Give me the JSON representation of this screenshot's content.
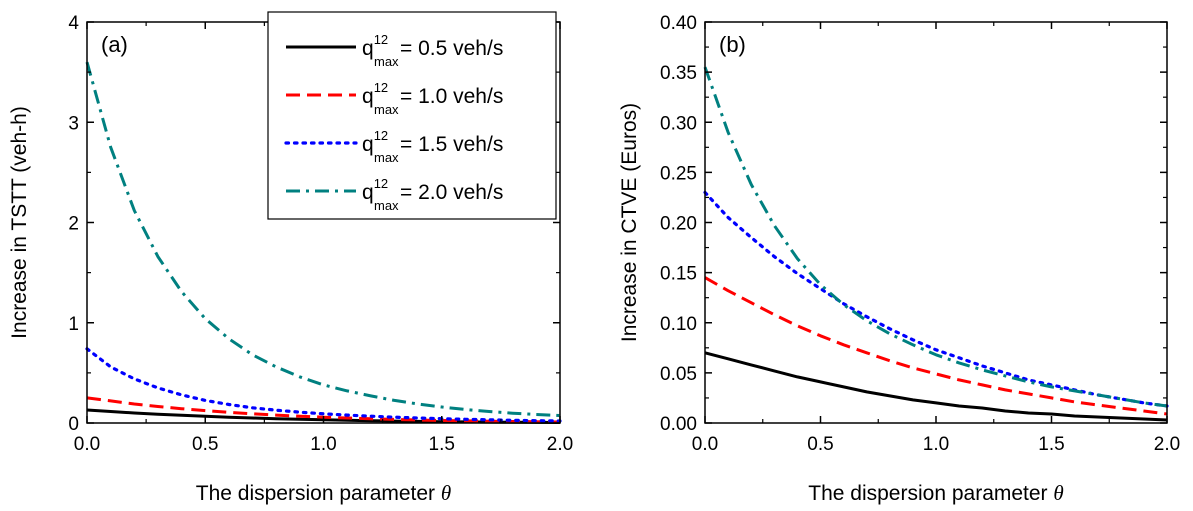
{
  "chart_data": [
    {
      "type": "line",
      "panel_label": "(a)",
      "xlabel": "The dispersion parameter",
      "xlabel_symbol": "θ",
      "ylabel": "Increase in TSTT (veh-h)",
      "xlim": [
        0.0,
        2.0
      ],
      "ylim": [
        0,
        4
      ],
      "xticks": [
        "0.0",
        "0.5",
        "1.0",
        "1.5",
        "2.0"
      ],
      "yticks": [
        "0",
        "1",
        "2",
        "3",
        "4"
      ],
      "x": [
        0.0,
        0.1,
        0.2,
        0.3,
        0.4,
        0.5,
        0.6,
        0.7,
        0.8,
        0.9,
        1.0,
        1.1,
        1.2,
        1.3,
        1.4,
        1.5,
        1.6,
        1.7,
        1.8,
        1.9,
        2.0
      ],
      "series": [
        {
          "name": "q_max^12 = 0.5 veh/s",
          "values": [
            0.13,
            0.115,
            0.1,
            0.088,
            0.077,
            0.067,
            0.058,
            0.05,
            0.043,
            0.037,
            0.032,
            0.027,
            0.023,
            0.019,
            0.016,
            0.013,
            0.011,
            0.009,
            0.007,
            0.006,
            0.005
          ]
        },
        {
          "name": "q_max^12 = 1.0 veh/s",
          "values": [
            0.25,
            0.22,
            0.19,
            0.165,
            0.143,
            0.124,
            0.107,
            0.092,
            0.079,
            0.068,
            0.058,
            0.05,
            0.042,
            0.036,
            0.03,
            0.025,
            0.021,
            0.018,
            0.015,
            0.012,
            0.01
          ]
        },
        {
          "name": "q_max^12 = 1.5 veh/s",
          "values": [
            0.74,
            0.56,
            0.44,
            0.35,
            0.28,
            0.225,
            0.185,
            0.152,
            0.128,
            0.108,
            0.092,
            0.079,
            0.068,
            0.058,
            0.05,
            0.043,
            0.037,
            0.032,
            0.027,
            0.023,
            0.02
          ]
        },
        {
          "name": "q_max^12 = 2.0 veh/s",
          "values": [
            3.6,
            2.75,
            2.12,
            1.66,
            1.31,
            1.04,
            0.84,
            0.68,
            0.56,
            0.46,
            0.38,
            0.32,
            0.27,
            0.225,
            0.19,
            0.16,
            0.135,
            0.115,
            0.098,
            0.085,
            0.075
          ]
        }
      ],
      "grid": false
    },
    {
      "type": "line",
      "panel_label": "(b)",
      "xlabel": "The dispersion parameter",
      "xlabel_symbol": "θ",
      "ylabel": "Increase in CTVE (Euros)",
      "xlim": [
        0.0,
        2.0
      ],
      "ylim": [
        0,
        0.4
      ],
      "xticks": [
        "0.0",
        "0.5",
        "1.0",
        "1.5",
        "2.0"
      ],
      "yticks": [
        "0.00",
        "0.05",
        "0.10",
        "0.15",
        "0.20",
        "0.25",
        "0.30",
        "0.35",
        "0.40"
      ],
      "x": [
        0.0,
        0.1,
        0.2,
        0.3,
        0.4,
        0.5,
        0.6,
        0.7,
        0.8,
        0.9,
        1.0,
        1.1,
        1.2,
        1.3,
        1.4,
        1.5,
        1.6,
        1.7,
        1.8,
        1.9,
        2.0
      ],
      "series": [
        {
          "name": "q_max^12 = 0.5 veh/s",
          "values": [
            0.07,
            0.064,
            0.058,
            0.052,
            0.046,
            0.041,
            0.036,
            0.031,
            0.027,
            0.023,
            0.02,
            0.017,
            0.015,
            0.012,
            0.01,
            0.009,
            0.007,
            0.006,
            0.005,
            0.004,
            0.003
          ]
        },
        {
          "name": "q_max^12 = 1.0 veh/s",
          "values": [
            0.145,
            0.132,
            0.12,
            0.108,
            0.097,
            0.087,
            0.078,
            0.07,
            0.062,
            0.055,
            0.049,
            0.043,
            0.038,
            0.033,
            0.029,
            0.025,
            0.021,
            0.018,
            0.015,
            0.012,
            0.009
          ]
        },
        {
          "name": "q_max^12 = 1.5 veh/s",
          "values": [
            0.23,
            0.205,
            0.185,
            0.166,
            0.149,
            0.134,
            0.119,
            0.106,
            0.094,
            0.083,
            0.073,
            0.065,
            0.057,
            0.05,
            0.043,
            0.038,
            0.033,
            0.028,
            0.024,
            0.02,
            0.017
          ]
        },
        {
          "name": "q_max^12 = 2.0 veh/s",
          "values": [
            0.355,
            0.29,
            0.238,
            0.197,
            0.164,
            0.138,
            0.118,
            0.102,
            0.089,
            0.078,
            0.068,
            0.06,
            0.053,
            0.047,
            0.041,
            0.036,
            0.032,
            0.028,
            0.024,
            0.02,
            0.017
          ]
        }
      ],
      "grid": false
    }
  ],
  "legend": {
    "placement": "top-right of panel (a)",
    "entries": [
      {
        "q": "q",
        "sup": "12",
        "sub": "max",
        "rest": "= 0.5 veh/s"
      },
      {
        "q": "q",
        "sup": "12",
        "sub": "max",
        "rest": "= 1.0 veh/s"
      },
      {
        "q": "q",
        "sup": "12",
        "sub": "max",
        "rest": "= 1.5 veh/s"
      },
      {
        "q": "q",
        "sup": "12",
        "sub": "max",
        "rest": "= 2.0 veh/s"
      }
    ]
  },
  "series_styles": [
    {
      "color": "#000000",
      "dash": "solid"
    },
    {
      "color": "#ff0000",
      "dash": "dashed"
    },
    {
      "color": "#0000ff",
      "dash": "dotted"
    },
    {
      "color": "#008080",
      "dash": "dash-dot"
    }
  ]
}
